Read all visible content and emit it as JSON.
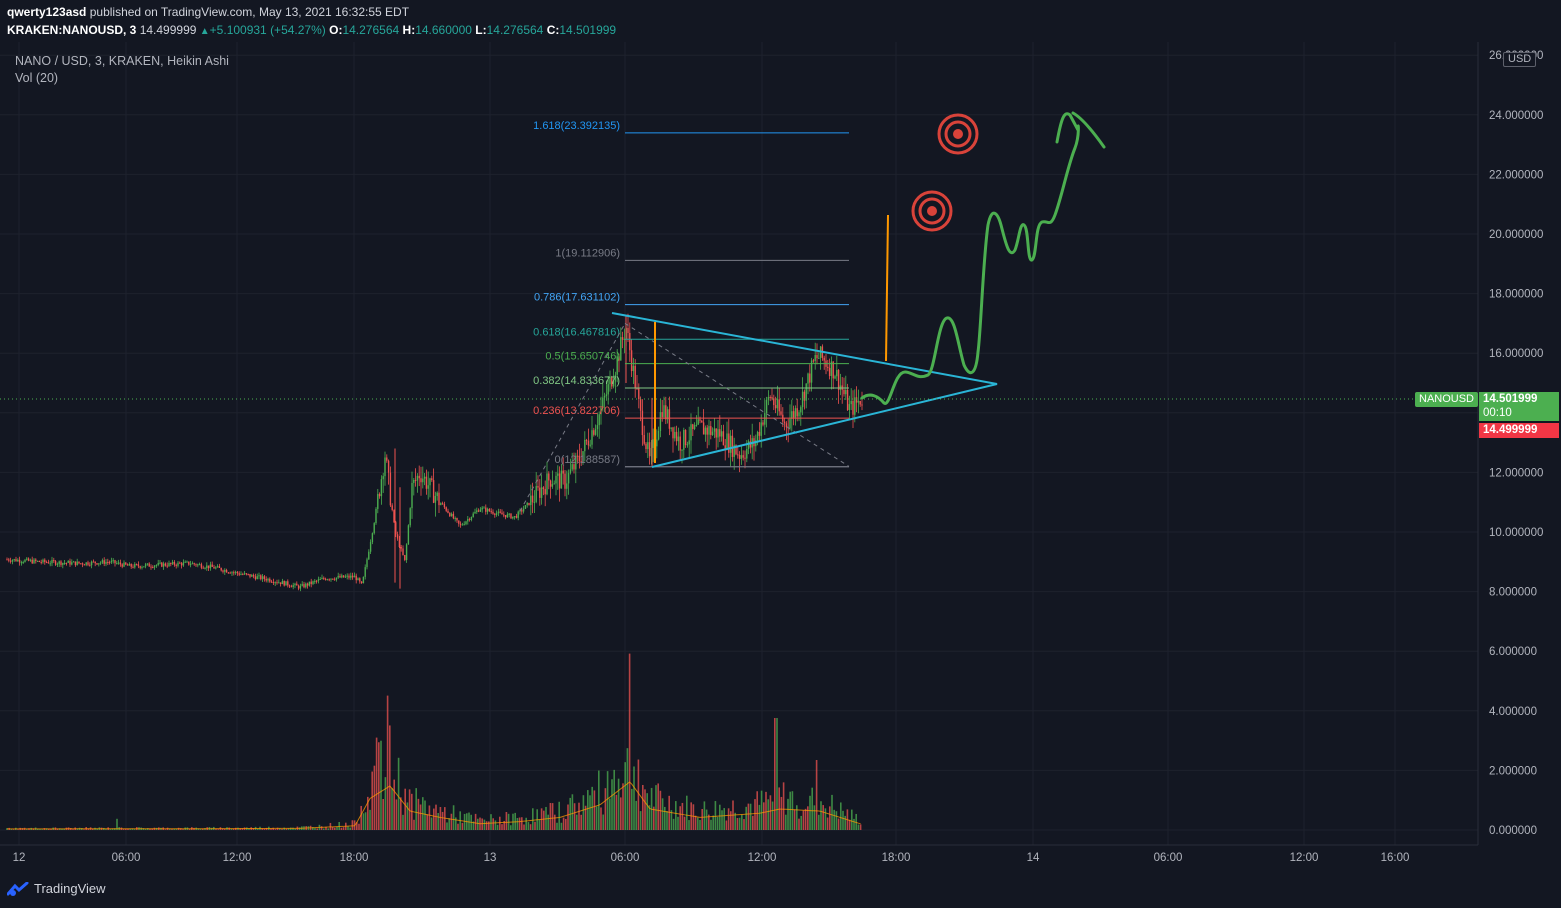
{
  "header": {
    "author": "qwerty123asd",
    "published_text": "published on TradingView.com, May 13, 2021 16:32:55 EDT",
    "symbol_line_prefix": "KRAKEN:NANOUSD, 3",
    "last_price": "14.499999",
    "change": "+5.100931 (+54.27%)",
    "o_label": "O:",
    "o_value": "14.276564",
    "h_label": "H:",
    "h_value": "14.660000",
    "l_label": "L:",
    "l_value": "14.276564",
    "c_label": "C:",
    "c_value": "14.501999"
  },
  "legend": {
    "title": "NANO / USD, 3, KRAKEN, Heikin Ashi",
    "volume": "Vol (20)"
  },
  "axis": {
    "currency": "USD",
    "symbol_tag": "NANOUSD",
    "current_price": "14.501999",
    "countdown": "00:10",
    "last_price_tag": "14.499999"
  },
  "footer": {
    "brand": "TradingView"
  },
  "colors": {
    "background": "#131722",
    "up": "#4caf50",
    "down": "#ef5350",
    "triangle": "#2ab5d6",
    "projection": "#4caf50",
    "target": "#d9433a",
    "orange": "#ff9800"
  },
  "chart_data": {
    "type": "candlestick",
    "style": "Heikin Ashi",
    "symbol": "NANO / USD",
    "exchange": "KRAKEN",
    "interval": "3",
    "x_ticks": [
      "12",
      "06:00",
      "12:00",
      "18:00",
      "13",
      "06:00",
      "12:00",
      "18:00",
      "14",
      "06:00",
      "12:00",
      "16:00"
    ],
    "y_ticks": [
      "0.000000",
      "2.000000",
      "4.000000",
      "6.000000",
      "8.000000",
      "10.000000",
      "12.000000",
      "14.000000",
      "16.000000",
      "18.000000",
      "20.000000",
      "22.000000",
      "24.000000",
      "26.000000"
    ],
    "ylim": [
      -0.4,
      26.4
    ],
    "price_path": [
      [
        0,
        9.1
      ],
      [
        40,
        9.0
      ],
      [
        80,
        8.95
      ],
      [
        110,
        9.0
      ],
      [
        130,
        8.85
      ],
      [
        160,
        8.9
      ],
      [
        190,
        8.95
      ],
      [
        215,
        8.8
      ],
      [
        240,
        8.6
      ],
      [
        270,
        8.4
      ],
      [
        300,
        8.15
      ],
      [
        325,
        8.45
      ],
      [
        355,
        8.5
      ],
      [
        362,
        8.2
      ],
      [
        375,
        10.5
      ],
      [
        385,
        12.6
      ],
      [
        395,
        10.0
      ],
      [
        405,
        9.0
      ],
      [
        412,
        11.5
      ],
      [
        420,
        12.0
      ],
      [
        440,
        11.0
      ],
      [
        460,
        10.2
      ],
      [
        480,
        10.8
      ],
      [
        500,
        10.6
      ],
      [
        515,
        10.5
      ],
      [
        530,
        11.0
      ],
      [
        550,
        11.8
      ],
      [
        565,
        11.7
      ],
      [
        580,
        12.5
      ],
      [
        600,
        14.0
      ],
      [
        615,
        15.5
      ],
      [
        626,
        16.9
      ],
      [
        640,
        14.0
      ],
      [
        650,
        12.3
      ],
      [
        662,
        14.2
      ],
      [
        680,
        13.0
      ],
      [
        700,
        13.5
      ],
      [
        720,
        13.3
      ],
      [
        740,
        12.6
      ],
      [
        755,
        13.0
      ],
      [
        770,
        14.6
      ],
      [
        785,
        13.6
      ],
      [
        800,
        14.3
      ],
      [
        815,
        15.8
      ],
      [
        820,
        15.9
      ],
      [
        835,
        15.4
      ],
      [
        850,
        14.1
      ],
      [
        862,
        14.5
      ]
    ],
    "volume_path": [
      [
        0,
        0.05
      ],
      [
        100,
        0.06
      ],
      [
        200,
        0.06
      ],
      [
        300,
        0.08
      ],
      [
        355,
        0.2
      ],
      [
        370,
        1.5
      ],
      [
        390,
        2.1
      ],
      [
        410,
        0.9
      ],
      [
        440,
        0.6
      ],
      [
        480,
        0.3
      ],
      [
        520,
        0.4
      ],
      [
        560,
        0.6
      ],
      [
        600,
        1.2
      ],
      [
        630,
        2.3
      ],
      [
        650,
        1.0
      ],
      [
        700,
        0.6
      ],
      [
        760,
        0.8
      ],
      [
        780,
        1.0
      ],
      [
        820,
        0.9
      ],
      [
        860,
        0.3
      ]
    ],
    "volume_spikes": [
      [
        388,
        4.8
      ],
      [
        630,
        6.3
      ],
      [
        776,
        4.0
      ],
      [
        816,
        2.5
      ],
      [
        118,
        0.4
      ],
      [
        376,
        3.3
      ]
    ],
    "fibonacci": [
      {
        "label": "1.618(23.392135)",
        "level": 23.392135,
        "color": "#2196f3"
      },
      {
        "label": "1(19.112906)",
        "level": 19.112906,
        "color": "#787b86"
      },
      {
        "label": "0.786(17.631102)",
        "level": 17.631102,
        "color": "#42a5f5"
      },
      {
        "label": "0.618(16.467816)",
        "level": 16.467816,
        "color": "#26a69a"
      },
      {
        "label": "0.5(15.650746)",
        "level": 15.650746,
        "color": "#4caf50"
      },
      {
        "label": "0.382(14.833677)",
        "level": 14.833677,
        "color": "#81c784"
      },
      {
        "label": "0.236(13.822706)",
        "level": 13.822706,
        "color": "#ef5350"
      },
      {
        "label": "0(12.188587)",
        "level": 12.188587,
        "color": "#787b86"
      }
    ]
  }
}
